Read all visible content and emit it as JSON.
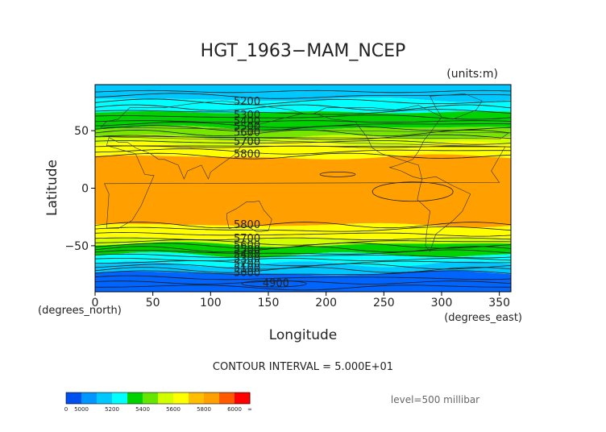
{
  "chart_data": {
    "type": "heatmap",
    "title": "HGT_1963−MAM_NCEP",
    "units_label": "(units:m)",
    "xlabel": "Longitude",
    "ylabel": "Latitude",
    "x_unit_label": "(degrees_east)",
    "y_unit_label": "(degrees_north)",
    "xlim": [
      0,
      360
    ],
    "ylim": [
      -90,
      90
    ],
    "x_ticks": [
      {
        "value": 0,
        "label": "0"
      },
      {
        "value": 50,
        "label": "50"
      },
      {
        "value": 100,
        "label": "100"
      },
      {
        "value": 150,
        "label": "150"
      },
      {
        "value": 200,
        "label": "200"
      },
      {
        "value": 250,
        "label": "250"
      },
      {
        "value": 300,
        "label": "300"
      },
      {
        "value": 350,
        "label": "350"
      }
    ],
    "y_ticks": [
      {
        "value": 50,
        "label": "50"
      },
      {
        "value": 0,
        "label": "0"
      },
      {
        "value": -50,
        "label": "−50"
      }
    ],
    "contour_interval_text": "CONTOUR INTERVAL = 5.000E+01",
    "level_text": "level=500 millibar",
    "bands": [
      {
        "lat_from": 90,
        "lat_to": 77,
        "color": "#00c8ff"
      },
      {
        "lat_from": 77,
        "lat_to": 66,
        "color": "#00ffff"
      },
      {
        "lat_from": 66,
        "lat_to": 52,
        "color": "#00d200"
      },
      {
        "lat_from": 52,
        "lat_to": 44,
        "color": "#78e600"
      },
      {
        "lat_from": 44,
        "lat_to": 38,
        "color": "#d2ff00"
      },
      {
        "lat_from": 38,
        "lat_to": 27,
        "color": "#ffff00"
      },
      {
        "lat_from": 27,
        "lat_to": -32,
        "color": "#ffa000"
      },
      {
        "lat_from": -32,
        "lat_to": -44,
        "color": "#ffff00"
      },
      {
        "lat_from": -44,
        "lat_to": -49,
        "color": "#d2ff00"
      },
      {
        "lat_from": -49,
        "lat_to": -58,
        "color": "#00d200"
      },
      {
        "lat_from": -58,
        "lat_to": -66,
        "color": "#00ffff"
      },
      {
        "lat_from": -66,
        "lat_to": -74,
        "color": "#00c8ff"
      },
      {
        "lat_from": -74,
        "lat_to": -90,
        "color": "#0064ff"
      }
    ],
    "contour_lats": [
      84,
      80,
      75,
      70,
      66,
      62,
      58,
      55,
      52,
      48,
      44,
      40,
      36,
      32,
      28,
      -32,
      -36,
      -40,
      -44,
      -47,
      -50,
      -53,
      -56,
      -59,
      -62,
      -65,
      -68,
      -71,
      -74,
      -78,
      -82,
      -86
    ],
    "contour_labels": [
      {
        "text": "5200",
        "lon": 120,
        "lat": 76
      },
      {
        "text": "5300",
        "lon": 120,
        "lat": 64
      },
      {
        "text": "5400",
        "lon": 120,
        "lat": 59
      },
      {
        "text": "5500",
        "lon": 120,
        "lat": 54
      },
      {
        "text": "5600",
        "lon": 120,
        "lat": 49
      },
      {
        "text": "5700",
        "lon": 120,
        "lat": 41
      },
      {
        "text": "5800",
        "lon": 120,
        "lat": 30
      },
      {
        "text": "5800",
        "lon": 120,
        "lat": -31
      },
      {
        "text": "5700",
        "lon": 120,
        "lat": -43
      },
      {
        "text": "5600",
        "lon": 120,
        "lat": -49
      },
      {
        "text": "5500",
        "lon": 120,
        "lat": -53
      },
      {
        "text": "5400",
        "lon": 120,
        "lat": -57
      },
      {
        "text": "5300",
        "lon": 120,
        "lat": -61
      },
      {
        "text": "5200",
        "lon": 120,
        "lat": -65
      },
      {
        "text": "5100",
        "lon": 120,
        "lat": -69
      },
      {
        "text": "5000",
        "lon": 120,
        "lat": -73
      },
      {
        "text": "4900",
        "lon": 145,
        "lat": -82
      }
    ],
    "colorbar": {
      "colors": [
        "#0050f0",
        "#0096ff",
        "#00c8ff",
        "#00ffff",
        "#00d200",
        "#64e600",
        "#d2ff00",
        "#ffff00",
        "#ffbe00",
        "#ffa000",
        "#ff5a00",
        "#ff0000"
      ],
      "tick_labels": [
        "0",
        "5000",
        "5200",
        "5400",
        "5600",
        "5800",
        "6000",
        "∞"
      ]
    }
  }
}
